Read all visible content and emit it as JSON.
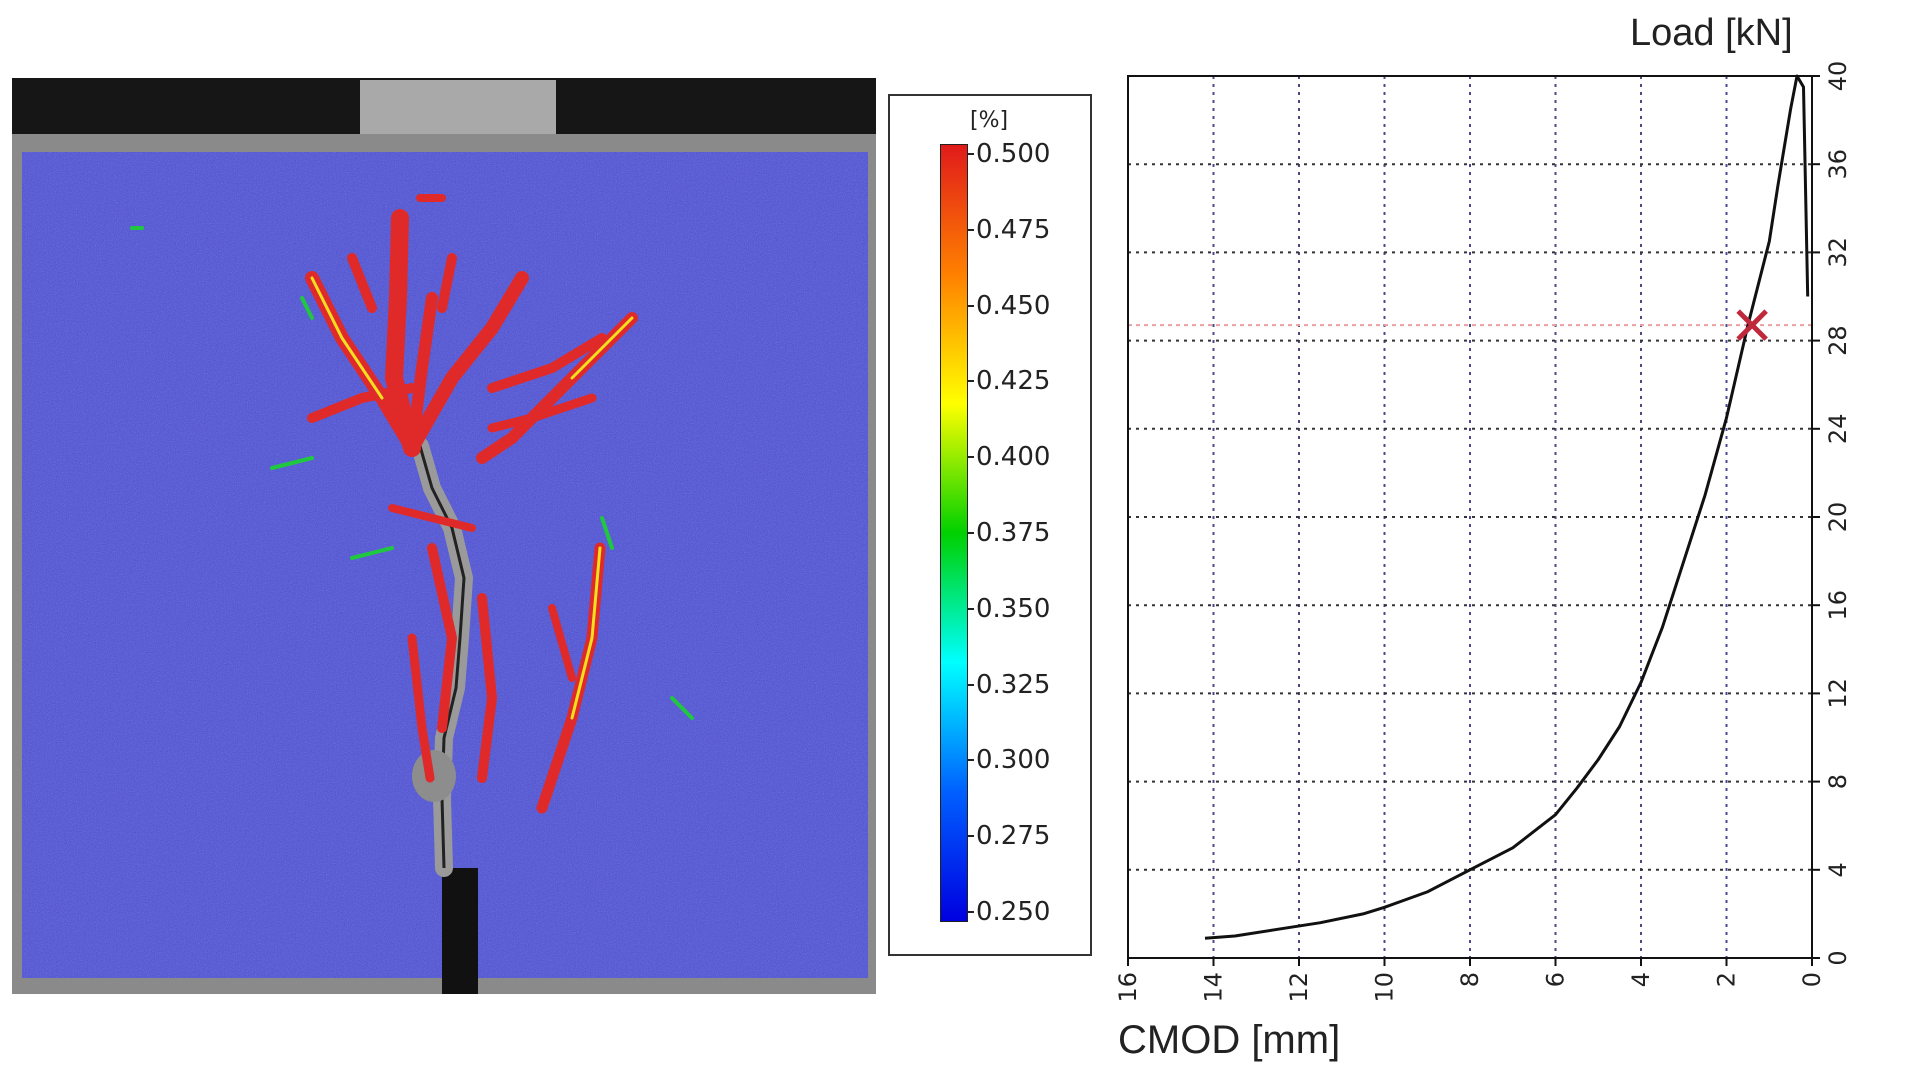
{
  "colorbar": {
    "unit": "[%]",
    "labels": [
      "0.500",
      "0.475",
      "0.450",
      "0.425",
      "0.400",
      "0.375",
      "0.350",
      "0.325",
      "0.300",
      "0.275",
      "0.250"
    ],
    "colors": [
      "#e01b1b",
      "#ff8000",
      "#ffff00",
      "#00d000",
      "#00ffff",
      "#0060ff",
      "#0000e0"
    ]
  },
  "chart_data": {
    "type": "line",
    "title": "",
    "xlabel": "CMOD [mm]",
    "ylabel": "Load [kN]",
    "xlim": [
      16,
      0
    ],
    "ylim": [
      0,
      40
    ],
    "x_ticks": [
      "16",
      "14",
      "12",
      "10",
      "8",
      "6",
      "4",
      "2",
      "0"
    ],
    "y_ticks": [
      "0",
      "4",
      "8",
      "12",
      "16",
      "20",
      "24",
      "28",
      "32",
      "36",
      "40"
    ],
    "grid": true,
    "series": [
      {
        "color": "#111111",
        "x": [
          14.2,
          13.5,
          12.5,
          11.5,
          10.5,
          10.0,
          9.0,
          8.0,
          7.0,
          6.0,
          5.5,
          5.0,
          4.5,
          4.0,
          3.5,
          3.0,
          2.5,
          2.0,
          1.5,
          1.0,
          0.8,
          0.5,
          0.35,
          0.2,
          0.1
        ],
        "y": [
          0.9,
          1.0,
          1.3,
          1.6,
          2.0,
          2.3,
          3.0,
          4.0,
          5.0,
          6.5,
          7.7,
          9.0,
          10.5,
          12.5,
          15.0,
          18.0,
          21.0,
          24.5,
          28.7,
          32.5,
          35.0,
          38.5,
          40.0,
          39.5,
          30.0
        ]
      }
    ],
    "marker": {
      "x": 1.4,
      "y": 28.7,
      "symbol": "x",
      "color": "#c0283c"
    }
  }
}
